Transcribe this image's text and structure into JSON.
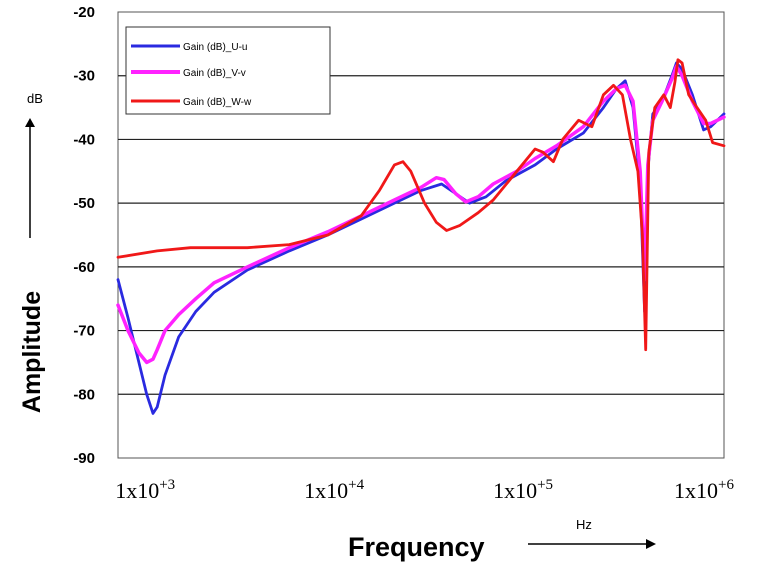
{
  "chart_data": {
    "type": "line",
    "title": "",
    "xlabel": "Frequency",
    "ylabel": "Amplitude",
    "x_unit": "Hz",
    "y_unit": "dB",
    "x_scale": "log",
    "xlim": [
      620,
      1000000
    ],
    "ylim": [
      -90,
      -20
    ],
    "y_ticks": [
      "-20",
      "-30",
      "-40",
      "-50",
      "-60",
      "-70",
      "-80",
      "-90"
    ],
    "x_ticks": [
      {
        "base": "1x10",
        "exp": "+3",
        "value": 1000
      },
      {
        "base": "1x10",
        "exp": "+4",
        "value": 10000
      },
      {
        "base": "1x10",
        "exp": "+5",
        "value": 100000
      },
      {
        "base": "1x10",
        "exp": "+6",
        "value": 1000000
      }
    ],
    "grid": "horizontal",
    "legend_position": "top-left",
    "series": [
      {
        "name": "Gain (dB)_U-u",
        "color": "#2a2ae0",
        "points": [
          [
            620,
            -62
          ],
          [
            700,
            -68
          ],
          [
            800,
            -75
          ],
          [
            880,
            -80
          ],
          [
            950,
            -83
          ],
          [
            1000,
            -82
          ],
          [
            1100,
            -77
          ],
          [
            1300,
            -71
          ],
          [
            1600,
            -67
          ],
          [
            2000,
            -64
          ],
          [
            3000,
            -60.5
          ],
          [
            5000,
            -57.5
          ],
          [
            8000,
            -55
          ],
          [
            12000,
            -52.5
          ],
          [
            18000,
            -50
          ],
          [
            25000,
            -48
          ],
          [
            32000,
            -47
          ],
          [
            38000,
            -48.5
          ],
          [
            45000,
            -50
          ],
          [
            55000,
            -49
          ],
          [
            70000,
            -46.5
          ],
          [
            100000,
            -44
          ],
          [
            130000,
            -41.5
          ],
          [
            180000,
            -39
          ],
          [
            230000,
            -35
          ],
          [
            270000,
            -32
          ],
          [
            300000,
            -30.8
          ],
          [
            330000,
            -35
          ],
          [
            360000,
            -47
          ],
          [
            380000,
            -67
          ],
          [
            395000,
            -45
          ],
          [
            420000,
            -36
          ],
          [
            470000,
            -34
          ],
          [
            530000,
            -30
          ],
          [
            560000,
            -28
          ],
          [
            600000,
            -29
          ],
          [
            680000,
            -33
          ],
          [
            780000,
            -38.5
          ],
          [
            850000,
            -38
          ],
          [
            1000000,
            -36
          ]
        ]
      },
      {
        "name": "Gain (dB)_V-v",
        "color": "#ff22ff",
        "points": [
          [
            620,
            -66
          ],
          [
            700,
            -70
          ],
          [
            800,
            -73.5
          ],
          [
            880,
            -75
          ],
          [
            950,
            -74.5
          ],
          [
            1000,
            -73
          ],
          [
            1100,
            -70
          ],
          [
            1300,
            -67.5
          ],
          [
            1600,
            -65
          ],
          [
            2000,
            -62.5
          ],
          [
            3000,
            -60
          ],
          [
            5000,
            -57
          ],
          [
            8000,
            -54.5
          ],
          [
            12000,
            -52
          ],
          [
            18000,
            -49.5
          ],
          [
            25000,
            -47.5
          ],
          [
            30000,
            -46
          ],
          [
            33000,
            -46.3
          ],
          [
            38000,
            -48.5
          ],
          [
            43000,
            -49.8
          ],
          [
            50000,
            -49
          ],
          [
            60000,
            -47
          ],
          [
            80000,
            -45
          ],
          [
            100000,
            -43
          ],
          [
            130000,
            -41
          ],
          [
            180000,
            -38
          ],
          [
            230000,
            -34
          ],
          [
            270000,
            -32
          ],
          [
            300000,
            -31.5
          ],
          [
            330000,
            -34
          ],
          [
            360000,
            -45
          ],
          [
            380000,
            -62
          ],
          [
            395000,
            -44
          ],
          [
            420000,
            -37
          ],
          [
            470000,
            -34
          ],
          [
            530000,
            -30.5
          ],
          [
            560000,
            -28.5
          ],
          [
            600000,
            -30
          ],
          [
            680000,
            -34
          ],
          [
            780000,
            -37.5
          ],
          [
            850000,
            -37.5
          ],
          [
            1000000,
            -36.5
          ]
        ]
      },
      {
        "name": "Gain (dB)_W-w",
        "color": "#f01818",
        "points": [
          [
            620,
            -58.5
          ],
          [
            1000,
            -57.5
          ],
          [
            1500,
            -57
          ],
          [
            3000,
            -57
          ],
          [
            5000,
            -56.5
          ],
          [
            8000,
            -55
          ],
          [
            12000,
            -52
          ],
          [
            15000,
            -48
          ],
          [
            18000,
            -44
          ],
          [
            20000,
            -43.5
          ],
          [
            22000,
            -45
          ],
          [
            26000,
            -50
          ],
          [
            30000,
            -53
          ],
          [
            34000,
            -54.3
          ],
          [
            40000,
            -53.5
          ],
          [
            50000,
            -51.5
          ],
          [
            60000,
            -49.5
          ],
          [
            80000,
            -45
          ],
          [
            100000,
            -41.5
          ],
          [
            110000,
            -42
          ],
          [
            125000,
            -43.5
          ],
          [
            140000,
            -40
          ],
          [
            170000,
            -37
          ],
          [
            200000,
            -38
          ],
          [
            230000,
            -33
          ],
          [
            260000,
            -31.5
          ],
          [
            290000,
            -33
          ],
          [
            320000,
            -40
          ],
          [
            350000,
            -45
          ],
          [
            370000,
            -55
          ],
          [
            385000,
            -73
          ],
          [
            400000,
            -42
          ],
          [
            430000,
            -35
          ],
          [
            480000,
            -33
          ],
          [
            520000,
            -35
          ],
          [
            550000,
            -31
          ],
          [
            570000,
            -27.5
          ],
          [
            600000,
            -28
          ],
          [
            650000,
            -33
          ],
          [
            720000,
            -35
          ],
          [
            800000,
            -37
          ],
          [
            870000,
            -40.5
          ],
          [
            1000000,
            -41
          ]
        ]
      }
    ]
  }
}
